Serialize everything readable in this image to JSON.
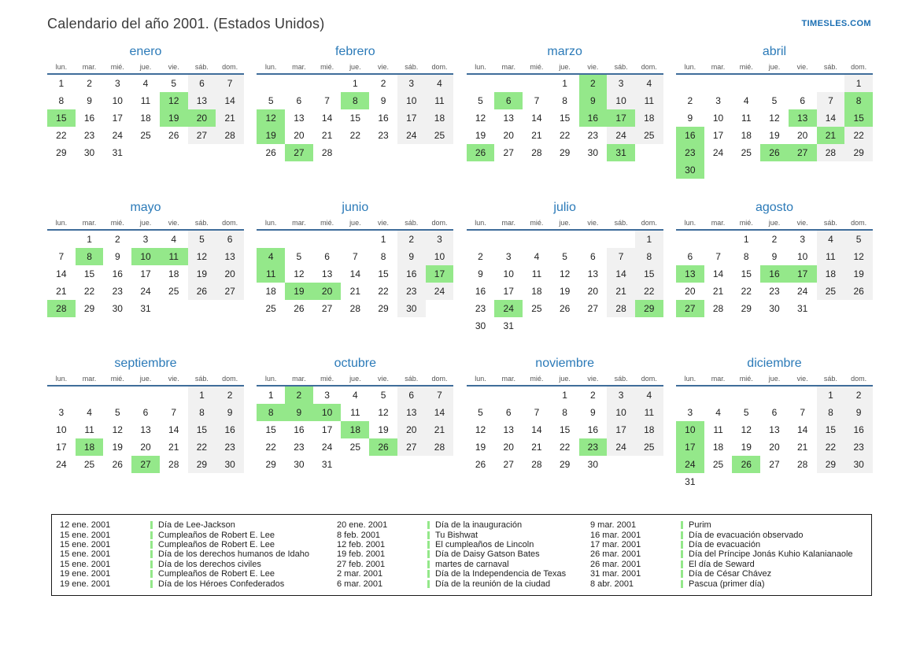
{
  "header": {
    "title": "Calendario del año 2001. (Estados Unidos)",
    "brand": "TIMESLES.COM"
  },
  "weekday_headers": [
    "lun.",
    "mar.",
    "mié.",
    "jue.",
    "vie.",
    "sáb.",
    "dom."
  ],
  "year": "2001",
  "months": [
    {
      "name": "enero",
      "first_weekday": 1,
      "days": 31,
      "green_days": [
        12,
        15,
        19,
        20
      ]
    },
    {
      "name": "febrero",
      "first_weekday": 4,
      "days": 28,
      "green_days": [
        8,
        12,
        19,
        27
      ]
    },
    {
      "name": "marzo",
      "first_weekday": 4,
      "days": 31,
      "green_days": [
        2,
        6,
        9,
        16,
        17,
        26,
        31
      ]
    },
    {
      "name": "abril",
      "first_weekday": 7,
      "days": 30,
      "green_days": [
        8,
        13,
        15,
        16,
        21,
        23,
        26,
        27,
        30
      ]
    },
    {
      "name": "mayo",
      "first_weekday": 2,
      "days": 31,
      "green_days": [
        8,
        10,
        11,
        28
      ]
    },
    {
      "name": "junio",
      "first_weekday": 5,
      "days": 30,
      "green_days": [
        4,
        11,
        17,
        19,
        20
      ]
    },
    {
      "name": "julio",
      "first_weekday": 7,
      "days": 31,
      "green_days": [
        24,
        29
      ]
    },
    {
      "name": "agosto",
      "first_weekday": 3,
      "days": 31,
      "green_days": [
        13,
        16,
        17,
        27
      ]
    },
    {
      "name": "septiembre",
      "first_weekday": 6,
      "days": 30,
      "green_days": [
        18,
        27
      ]
    },
    {
      "name": "octubre",
      "first_weekday": 1,
      "days": 31,
      "green_days": [
        2,
        8,
        9,
        10,
        18,
        26
      ]
    },
    {
      "name": "noviembre",
      "first_weekday": 4,
      "days": 30,
      "green_days": [
        23
      ]
    },
    {
      "name": "diciembre",
      "first_weekday": 6,
      "days": 31,
      "green_days": [
        10,
        17,
        24,
        26
      ]
    }
  ],
  "legend": {
    "columns": [
      {
        "entries": [
          {
            "date": "12 ene. 2001",
            "name": "Día de Lee-Jackson"
          },
          {
            "date": "15 ene. 2001",
            "name": "Cumpleaños de Robert E. Lee"
          },
          {
            "date": "15 ene. 2001",
            "name": "Cumpleaños de Robert E. Lee"
          },
          {
            "date": "15 ene. 2001",
            "name": "Día de los derechos humanos de Idaho"
          },
          {
            "date": "15 ene. 2001",
            "name": "Día de los derechos civiles"
          },
          {
            "date": "19 ene. 2001",
            "name": "Cumpleaños de Robert E. Lee"
          },
          {
            "date": "19 ene. 2001",
            "name": "Día de los Héroes Confederados"
          }
        ]
      },
      {
        "entries": [
          {
            "date": "20 ene. 2001",
            "name": "Día de la inauguración"
          },
          {
            "date": "8 feb. 2001",
            "name": "Tu Bishwat"
          },
          {
            "date": "12 feb. 2001",
            "name": "El cumpleaños de Lincoln"
          },
          {
            "date": "19 feb. 2001",
            "name": "Día de Daisy Gatson Bates"
          },
          {
            "date": "27 feb. 2001",
            "name": "martes de carnaval"
          },
          {
            "date": "2 mar. 2001",
            "name": "Día de la Independencia de Texas"
          },
          {
            "date": "6 mar. 2001",
            "name": "Día de la reunión de la ciudad"
          }
        ]
      },
      {
        "entries": [
          {
            "date": "9 mar. 2001",
            "name": "Purim"
          },
          {
            "date": "16 mar. 2001",
            "name": "Día de evacuación observado"
          },
          {
            "date": "17 mar. 2001",
            "name": "Día de evacuación"
          },
          {
            "date": "26 mar. 2001",
            "name": "Día del Príncipe Jonás Kuhio Kalanianaole"
          },
          {
            "date": "26 mar. 2001",
            "name": "El día de Seward"
          },
          {
            "date": "31 mar. 2001",
            "name": "Día de César Chávez"
          },
          {
            "date": "8 abr. 2001",
            "name": "Pascua (primer día)"
          }
        ]
      }
    ]
  },
  "colors": {
    "month_title_blue": "#2b7ab8",
    "brand_blue": "#1b6fb3",
    "header_line_blue": "#3f6d9a",
    "holiday_green": "#94e88a",
    "weekend_gray": "#f1f1f1"
  }
}
